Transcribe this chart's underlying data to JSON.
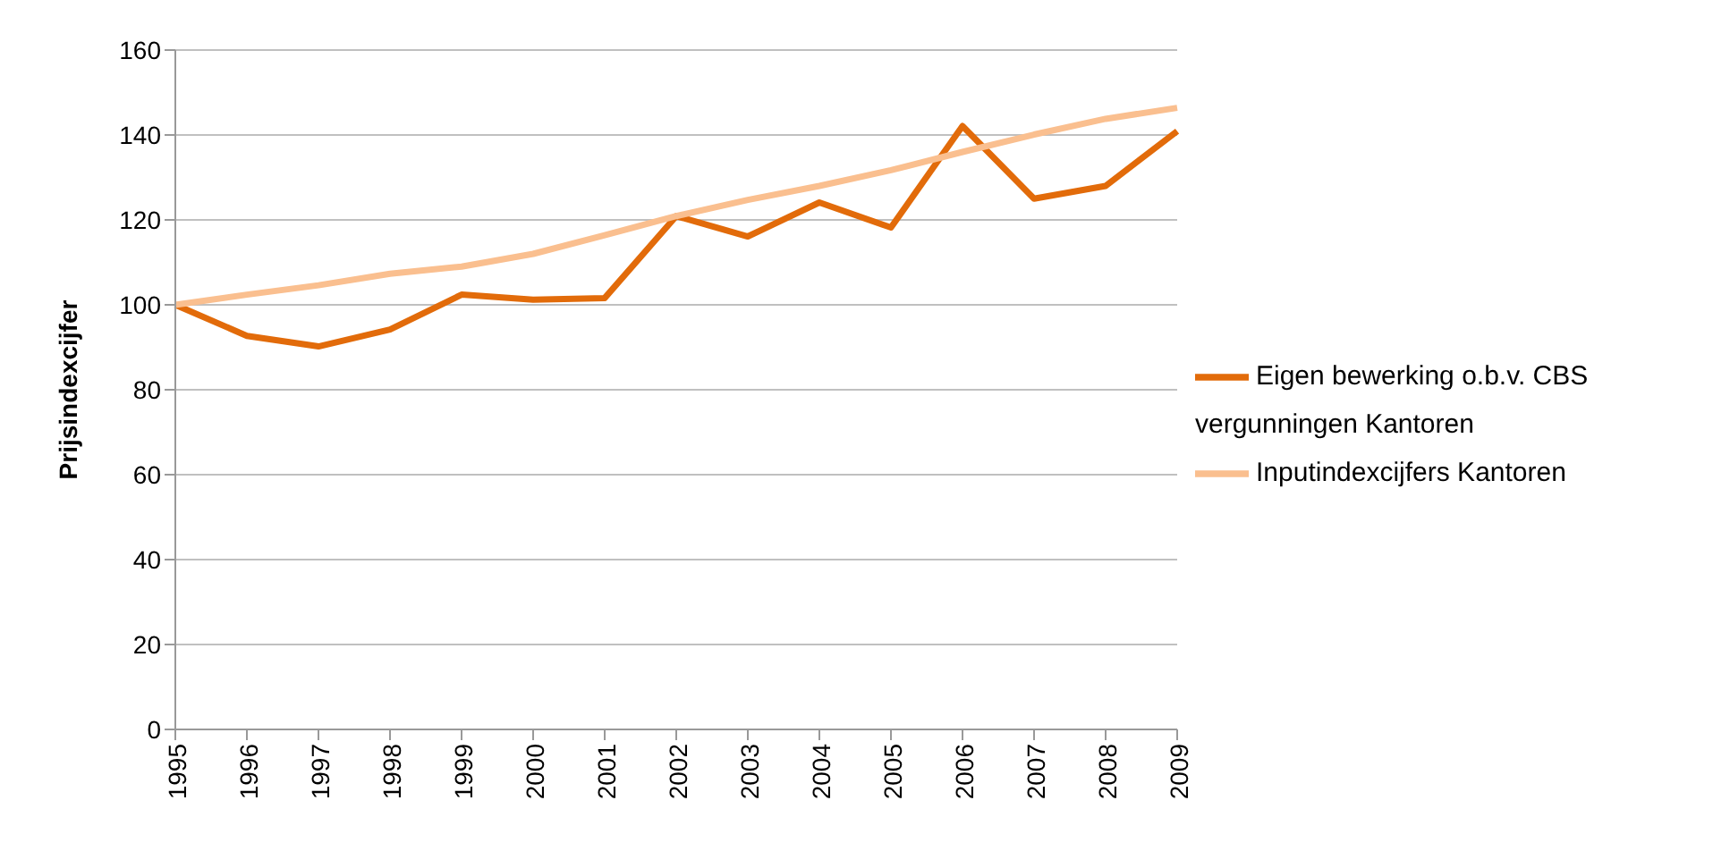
{
  "chart_data": {
    "type": "line",
    "ylabel": "Prijsindexcijfer",
    "categories": [
      "1995",
      "1996",
      "1997",
      "1998",
      "1999",
      "2000",
      "2001",
      "2002",
      "2003",
      "2004",
      "2005",
      "2006",
      "2007",
      "2008",
      "2009"
    ],
    "series": [
      {
        "name": "Eigen bewerking o.b.v. CBS vergunningen Kantoren",
        "color": "#e26b0a",
        "values": [
          100,
          92.7,
          90.2,
          94.2,
          102.4,
          101.2,
          101.6,
          120.9,
          116.1,
          124.1,
          118.2,
          142.1,
          125,
          128,
          140.9
        ]
      },
      {
        "name": "Inputindexcijfers Kantoren",
        "color": "#fabf8f",
        "values": [
          100,
          102.4,
          104.6,
          107.3,
          109,
          112,
          116.4,
          120.9,
          124.7,
          128,
          131.7,
          136,
          140.1,
          143.8,
          146.4
        ]
      }
    ],
    "ylim": [
      0,
      160
    ],
    "yticks": [
      0,
      20,
      40,
      60,
      80,
      100,
      120,
      140,
      160
    ],
    "grid": "y",
    "legend": "right",
    "marker": "none",
    "line_style": "solid"
  }
}
